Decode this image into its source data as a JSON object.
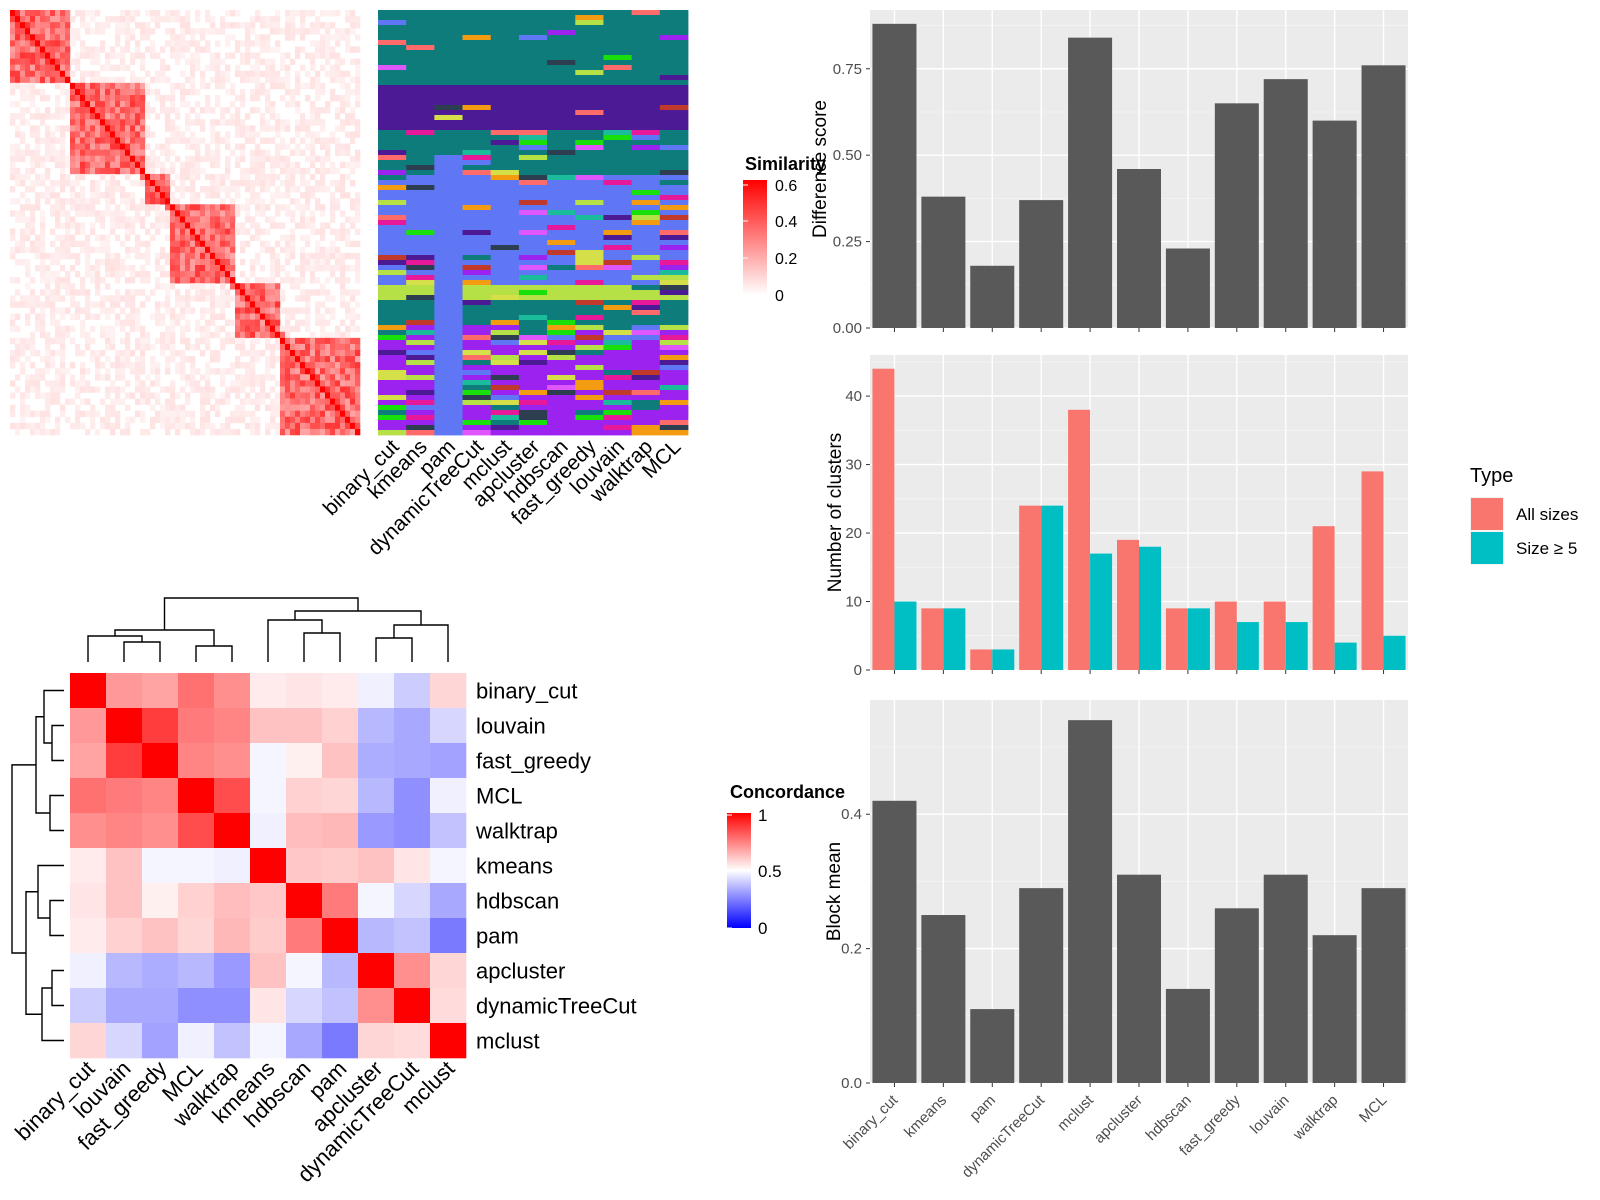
{
  "chart_data": [
    {
      "type": "heatmap",
      "legend_title": "Similarity",
      "legend_ticks": [
        "0",
        "0.2",
        "0.4",
        "0.6"
      ],
      "colors": {
        "low": "#ffffff",
        "high": "#ff0000"
      }
    },
    {
      "type": "heatmap",
      "columns": [
        "binary_cut",
        "kmeans",
        "pam",
        "dynamicTreeCut",
        "mclust",
        "apcluster",
        "hdbscan",
        "fast_greedy",
        "louvain",
        "walktrap",
        "MCL"
      ],
      "palette": [
        "#0e7c7b",
        "#4b1a94",
        "#5f76f5",
        "#b5e046",
        "#9c22f0",
        "#d5e048",
        "#e8189a",
        "#19e00b",
        "#c0392b",
        "#1abc9c",
        "#e056fd",
        "#f39c12",
        "#2c3e50",
        "#ff6b6b"
      ]
    },
    {
      "type": "heatmap",
      "legend_title": "Concordance",
      "legend_ticks": [
        "0",
        "0.5",
        "1"
      ],
      "rows": [
        "binary_cut",
        "louvain",
        "fast_greedy",
        "MCL",
        "walktrap",
        "kmeans",
        "hdbscan",
        "pam",
        "apcluster",
        "dynamicTreeCut",
        "mclust"
      ],
      "columns": [
        "binary_cut",
        "louvain",
        "fast_greedy",
        "MCL",
        "walktrap",
        "kmeans",
        "hdbscan",
        "pam",
        "apcluster",
        "dynamicTreeCut",
        "mclust"
      ],
      "values": [
        [
          1.0,
          0.7,
          0.68,
          0.78,
          0.72,
          0.54,
          0.55,
          0.54,
          0.47,
          0.4,
          0.58
        ],
        [
          0.7,
          1.0,
          0.88,
          0.76,
          0.74,
          0.62,
          0.62,
          0.59,
          0.36,
          0.33,
          0.42
        ],
        [
          0.68,
          0.88,
          1.0,
          0.74,
          0.72,
          0.48,
          0.53,
          0.62,
          0.34,
          0.33,
          0.32
        ],
        [
          0.78,
          0.76,
          0.74,
          1.0,
          0.85,
          0.48,
          0.59,
          0.58,
          0.36,
          0.28,
          0.47
        ],
        [
          0.72,
          0.74,
          0.72,
          0.85,
          1.0,
          0.47,
          0.63,
          0.64,
          0.3,
          0.28,
          0.38
        ],
        [
          0.54,
          0.62,
          0.48,
          0.48,
          0.47,
          1.0,
          0.61,
          0.6,
          0.62,
          0.55,
          0.48
        ],
        [
          0.55,
          0.62,
          0.53,
          0.59,
          0.63,
          0.61,
          1.0,
          0.76,
          0.48,
          0.42,
          0.33
        ],
        [
          0.54,
          0.59,
          0.62,
          0.58,
          0.64,
          0.6,
          0.76,
          1.0,
          0.36,
          0.38,
          0.24
        ],
        [
          0.47,
          0.36,
          0.34,
          0.36,
          0.3,
          0.62,
          0.48,
          0.36,
          1.0,
          0.72,
          0.58
        ],
        [
          0.4,
          0.33,
          0.33,
          0.28,
          0.28,
          0.55,
          0.42,
          0.38,
          0.72,
          1.0,
          0.57
        ],
        [
          0.58,
          0.42,
          0.32,
          0.47,
          0.38,
          0.48,
          0.33,
          0.24,
          0.58,
          0.57,
          1.0
        ]
      ],
      "colors": {
        "low": "#0000ff",
        "mid": "#ffffff",
        "high": "#ff0000"
      }
    },
    {
      "type": "bar",
      "categories": [
        "binary_cut",
        "kmeans",
        "pam",
        "dynamicTreeCut",
        "mclust",
        "apcluster",
        "hdbscan",
        "fast_greedy",
        "louvain",
        "walktrap",
        "MCL"
      ],
      "values": [
        0.88,
        0.38,
        0.18,
        0.37,
        0.84,
        0.46,
        0.23,
        0.65,
        0.72,
        0.6,
        0.76
      ],
      "ylabel": "Difference score",
      "yticks": [
        "0.00",
        "0.25",
        "0.50",
        "0.75"
      ],
      "ylim": [
        0,
        0.92
      ]
    },
    {
      "type": "bar",
      "categories": [
        "binary_cut",
        "kmeans",
        "pam",
        "dynamicTreeCut",
        "mclust",
        "apcluster",
        "hdbscan",
        "fast_greedy",
        "louvain",
        "walktrap",
        "MCL"
      ],
      "series": [
        {
          "name": "All sizes",
          "color": "#f8766d",
          "values": [
            44,
            9,
            3,
            24,
            38,
            19,
            9,
            10,
            10,
            21,
            29
          ]
        },
        {
          "name": "Size ≥ 5",
          "color": "#00bfc4",
          "values": [
            10,
            9,
            3,
            24,
            17,
            18,
            9,
            7,
            7,
            4,
            5
          ]
        }
      ],
      "ylabel": "Number of clusters",
      "yticks": [
        "0",
        "10",
        "20",
        "30",
        "40"
      ],
      "ylim": [
        0,
        46
      ],
      "legend_title": "Type",
      "legend_position": "right"
    },
    {
      "type": "bar",
      "categories": [
        "binary_cut",
        "kmeans",
        "pam",
        "dynamicTreeCut",
        "mclust",
        "apcluster",
        "hdbscan",
        "fast_greedy",
        "louvain",
        "walktrap",
        "MCL"
      ],
      "values": [
        0.42,
        0.25,
        0.11,
        0.29,
        0.54,
        0.31,
        0.14,
        0.26,
        0.31,
        0.22,
        0.29
      ],
      "ylabel": "Block mean",
      "yticks": [
        "0.0",
        "0.2",
        "0.4"
      ],
      "ylim": [
        0,
        0.57
      ]
    }
  ]
}
